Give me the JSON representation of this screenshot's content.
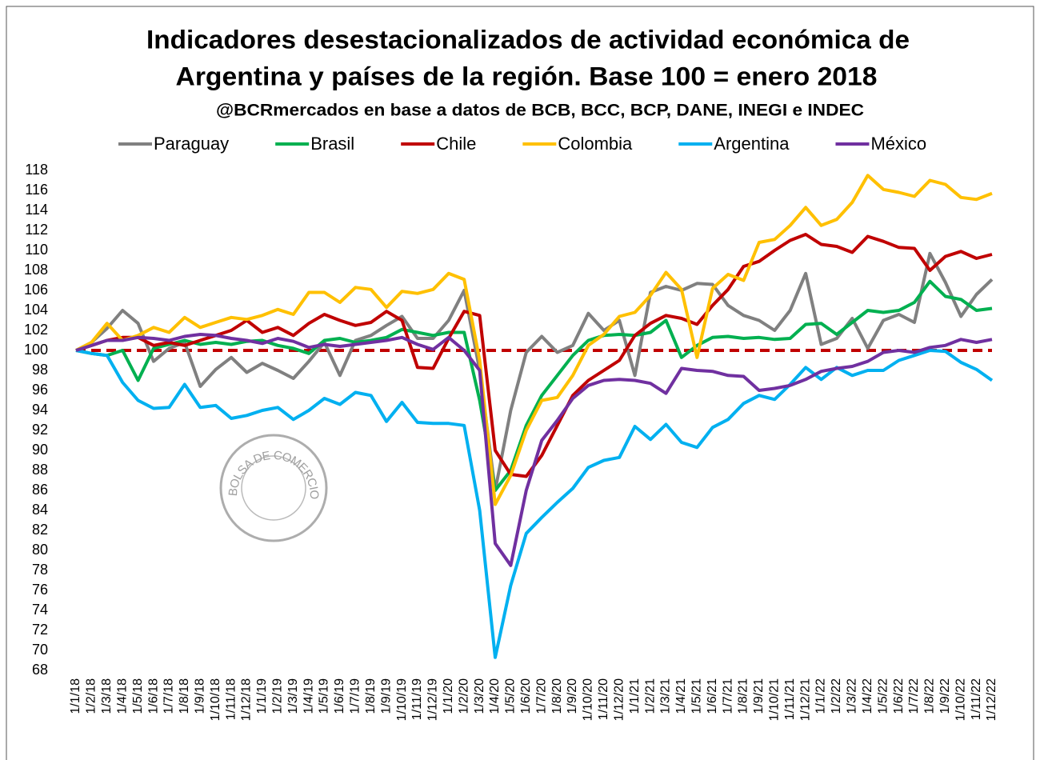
{
  "chart_data": {
    "type": "line",
    "title": "Indicadores desestacionalizados de actividad económica de",
    "title_line2": "Argentina y países de la región. Base 100 = enero 2018",
    "subtitle": "@BCRmercados en base a datos de BCB, BCC, BCP, DANE, INEGI e INDEC",
    "watermark": "BOLSA DE COMERCIO DE ROSARIO",
    "legend": "top",
    "grid": false,
    "reference_line": {
      "value": 100,
      "color": "#c00000"
    },
    "ylim": [
      68,
      118
    ],
    "yticks": [
      68,
      70,
      72,
      74,
      76,
      78,
      80,
      82,
      84,
      86,
      88,
      90,
      92,
      94,
      96,
      98,
      100,
      102,
      104,
      106,
      108,
      110,
      112,
      114,
      116,
      118
    ],
    "categories": [
      "1/1/18",
      "1/2/18",
      "1/3/18",
      "1/4/18",
      "1/5/18",
      "1/6/18",
      "1/7/18",
      "1/8/18",
      "1/9/18",
      "1/10/18",
      "1/11/18",
      "1/12/18",
      "1/1/19",
      "1/2/19",
      "1/3/19",
      "1/4/19",
      "1/5/19",
      "1/6/19",
      "1/7/19",
      "1/8/19",
      "1/9/19",
      "1/10/19",
      "1/11/19",
      "1/12/19",
      "1/1/20",
      "1/2/20",
      "1/3/20",
      "1/4/20",
      "1/5/20",
      "1/6/20",
      "1/7/20",
      "1/8/20",
      "1/9/20",
      "1/10/20",
      "1/11/20",
      "1/12/20",
      "1/1/21",
      "1/2/21",
      "1/3/21",
      "1/4/21",
      "1/5/21",
      "1/6/21",
      "1/7/21",
      "1/8/21",
      "1/9/21",
      "1/10/21",
      "1/11/21",
      "1/12/21",
      "1/1/22",
      "1/2/22",
      "1/3/22",
      "1/4/22",
      "1/5/22",
      "1/6/22",
      "1/7/22",
      "1/8/22",
      "1/9/22",
      "1/10/22",
      "1/11/22",
      "1/12/22"
    ],
    "series": [
      {
        "name": "Paraguay",
        "color": "#808080",
        "values": [
          100,
          100.8,
          102.2,
          104.0,
          102.7,
          98.9,
          100.2,
          100.8,
          96.4,
          98.1,
          99.3,
          97.8,
          98.7,
          98.0,
          97.2,
          98.9,
          100.8,
          97.5,
          101.0,
          101.5,
          102.5,
          103.4,
          101.2,
          101.2,
          103.0,
          106.0,
          98.0,
          86.0,
          94.0,
          99.8,
          101.4,
          99.8,
          100.5,
          103.7,
          102.0,
          103.0,
          97.5,
          105.8,
          106.4,
          106.0,
          106.7,
          106.6,
          104.5,
          103.5,
          103.0,
          102.0,
          104.0,
          107.7,
          100.6,
          101.2,
          103.2,
          100.2,
          103.0,
          103.6,
          102.8,
          109.7,
          106.8,
          103.4,
          105.6,
          107.1
        ]
      },
      {
        "name": "Brasil",
        "color": "#00b050",
        "values": [
          100,
          99.7,
          99.5,
          100.0,
          97.0,
          100.2,
          100.6,
          101.0,
          100.6,
          100.8,
          100.6,
          100.9,
          101.0,
          100.5,
          100.2,
          99.7,
          101.0,
          101.2,
          100.8,
          101.0,
          101.3,
          102.1,
          101.8,
          101.5,
          101.8,
          101.8,
          95.0,
          86.0,
          88.0,
          92.5,
          95.5,
          97.5,
          99.5,
          101.0,
          101.5,
          101.6,
          101.5,
          101.8,
          103.0,
          99.3,
          100.5,
          101.3,
          101.4,
          101.2,
          101.3,
          101.1,
          101.2,
          102.6,
          102.7,
          101.6,
          102.8,
          104.0,
          103.8,
          104.0,
          104.8,
          106.9,
          105.4,
          105.1,
          104.0,
          104.2
        ]
      },
      {
        "name": "Chile",
        "color": "#c00000",
        "values": [
          100,
          100.5,
          101.0,
          101.3,
          101.3,
          100.5,
          100.8,
          100.5,
          101.0,
          101.5,
          102.0,
          103.0,
          101.8,
          102.3,
          101.5,
          102.7,
          103.6,
          103.0,
          102.5,
          102.8,
          103.9,
          103.0,
          98.3,
          98.2,
          101.2,
          103.9,
          103.5,
          90.0,
          87.6,
          87.4,
          89.5,
          92.5,
          95.5,
          97.0,
          98.0,
          99.0,
          101.5,
          102.7,
          103.5,
          103.2,
          102.6,
          104.5,
          106.1,
          108.4,
          108.9,
          110.0,
          111.0,
          111.6,
          110.6,
          110.4,
          109.8,
          111.4,
          110.9,
          110.3,
          110.2,
          108.0,
          109.4,
          109.9,
          109.2,
          109.6
        ]
      },
      {
        "name": "Colombia",
        "color": "#ffc000",
        "values": [
          100,
          100.8,
          102.7,
          101.0,
          101.5,
          102.3,
          101.8,
          103.3,
          102.3,
          102.8,
          103.3,
          103.1,
          103.5,
          104.1,
          103.6,
          105.8,
          105.8,
          104.8,
          106.3,
          106.1,
          104.3,
          105.9,
          105.7,
          106.1,
          107.7,
          107.1,
          99.0,
          84.6,
          87.5,
          92.0,
          95.0,
          95.3,
          97.5,
          100.5,
          101.6,
          103.4,
          103.8,
          105.5,
          107.8,
          106.1,
          99.3,
          106.2,
          107.6,
          107.0,
          110.8,
          111.1,
          112.5,
          114.3,
          112.5,
          113.1,
          114.8,
          117.5,
          116.1,
          115.8,
          115.4,
          117.0,
          116.6,
          115.3,
          115.1,
          115.7
        ]
      },
      {
        "name": "Argentina",
        "color": "#00b0f0",
        "values": [
          100,
          99.7,
          99.5,
          96.8,
          95.0,
          94.2,
          94.3,
          96.6,
          94.3,
          94.5,
          93.2,
          93.5,
          94.0,
          94.3,
          93.1,
          94.0,
          95.2,
          94.6,
          95.8,
          95.5,
          92.9,
          94.8,
          92.8,
          92.7,
          92.7,
          92.5,
          84.0,
          69.3,
          76.5,
          81.7,
          83.3,
          84.8,
          86.2,
          88.3,
          89.0,
          89.3,
          92.4,
          91.1,
          92.6,
          90.8,
          90.3,
          92.3,
          93.1,
          94.7,
          95.5,
          95.1,
          96.6,
          98.3,
          97.1,
          98.3,
          97.5,
          98.0,
          98.0,
          99.0,
          99.5,
          100.0,
          99.9,
          98.8,
          98.1,
          97.0
        ]
      },
      {
        "name": "México",
        "color": "#7030a0",
        "values": [
          100,
          100.5,
          101.0,
          101.0,
          101.3,
          101.2,
          101.0,
          101.4,
          101.6,
          101.5,
          101.2,
          101.0,
          100.7,
          101.2,
          100.9,
          100.3,
          100.6,
          100.4,
          100.6,
          100.8,
          101.0,
          101.3,
          100.6,
          100.1,
          101.3,
          100.0,
          98.0,
          80.7,
          78.5,
          86.0,
          91.0,
          93.0,
          95.2,
          96.5,
          97.0,
          97.1,
          97.0,
          96.7,
          95.7,
          98.2,
          98.0,
          97.9,
          97.5,
          97.4,
          96.0,
          96.2,
          96.5,
          97.1,
          97.9,
          98.2,
          98.4,
          98.9,
          99.8,
          100.0,
          99.8,
          100.3,
          100.5,
          101.1,
          100.8,
          101.1
        ]
      }
    ]
  }
}
